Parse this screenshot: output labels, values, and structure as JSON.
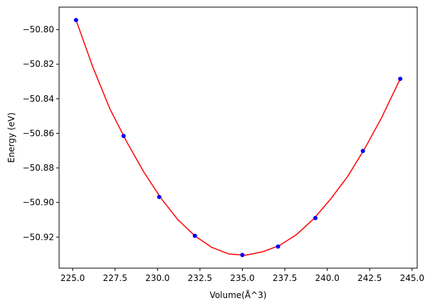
{
  "chart_data": {
    "type": "scatter",
    "title": "",
    "xlabel": "Volume(Å^3)",
    "ylabel": "Energy (eV)",
    "xlim": [
      224.2,
      245.3
    ],
    "ylim": [
      -50.938,
      -50.787
    ],
    "xticks": [
      225.0,
      227.5,
      230.0,
      232.5,
      235.0,
      237.5,
      240.0,
      242.5,
      245.0
    ],
    "xtick_labels": [
      "225.0",
      "227.5",
      "230.0",
      "232.5",
      "235.0",
      "237.5",
      "240.0",
      "242.5",
      "245.0"
    ],
    "yticks": [
      -50.8,
      -50.82,
      -50.84,
      -50.86,
      -50.88,
      -50.9,
      -50.92
    ],
    "ytick_labels": [
      "−50.80",
      "−50.82",
      "−50.84",
      "−50.86",
      "−50.88",
      "−50.90",
      "−50.92"
    ],
    "grid": false,
    "series": [
      {
        "kind": "points",
        "color": "#0000ff",
        "x": [
          225.2,
          228.0,
          230.1,
          232.2,
          235.0,
          237.1,
          239.3,
          242.1,
          244.3
        ],
        "y": [
          -50.7945,
          -50.8615,
          -50.8968,
          -50.9193,
          -50.9304,
          -50.9255,
          -50.909,
          -50.8702,
          -50.8285
        ]
      },
      {
        "kind": "fit-line",
        "color": "#ff0000",
        "x": [
          225.2,
          226.2,
          227.2,
          228.2,
          229.2,
          230.2,
          231.2,
          232.2,
          233.2,
          234.2,
          235.2,
          236.2,
          237.2,
          238.2,
          239.2,
          240.2,
          241.2,
          242.2,
          243.2,
          244.3
        ],
        "y": [
          -50.7945,
          -50.822,
          -50.846,
          -50.8652,
          -50.8825,
          -50.8975,
          -50.91,
          -50.9193,
          -50.926,
          -50.9298,
          -50.9305,
          -50.9285,
          -50.9248,
          -50.9185,
          -50.9095,
          -50.898,
          -50.885,
          -50.869,
          -50.851,
          -50.8285
        ]
      }
    ]
  }
}
